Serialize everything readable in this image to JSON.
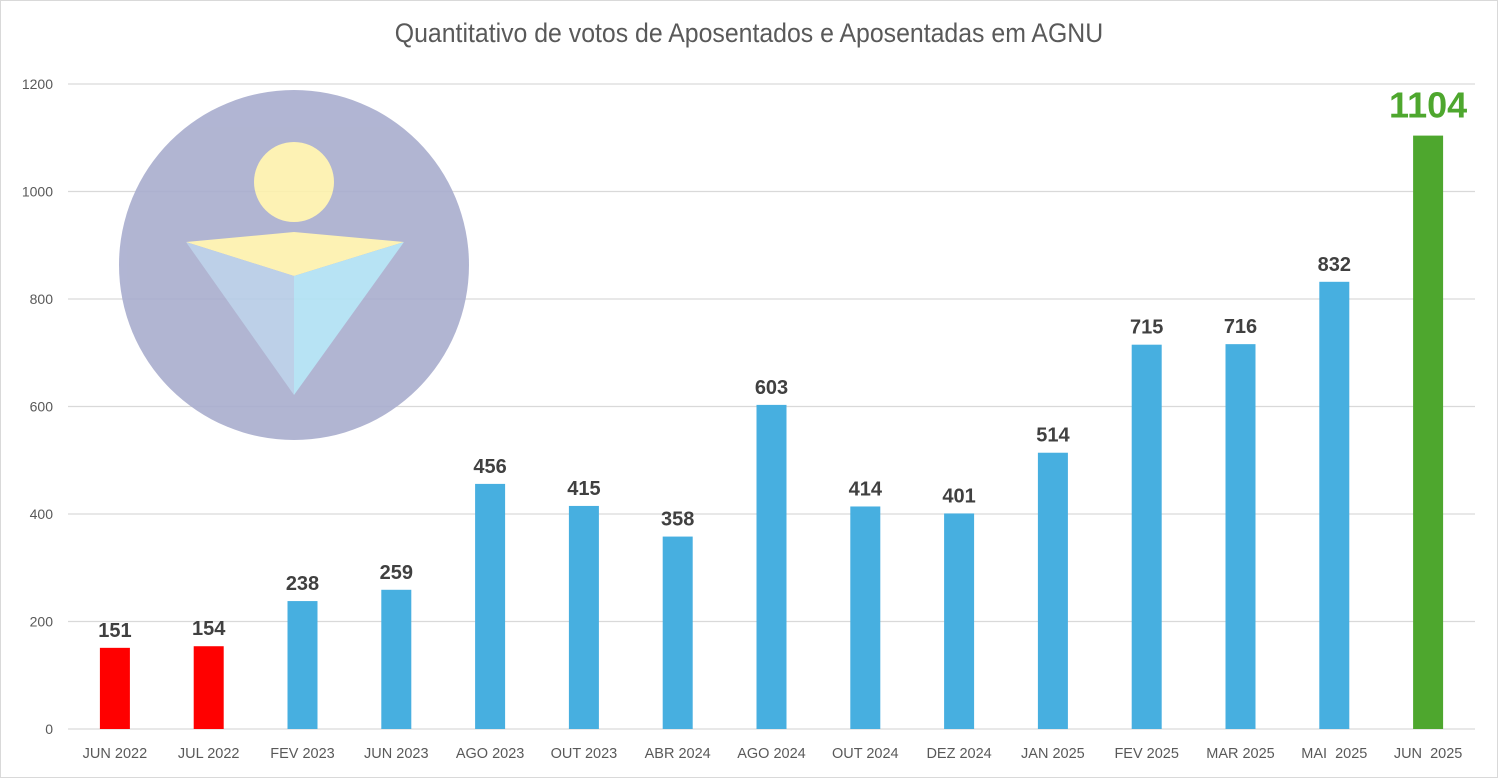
{
  "chart_data": {
    "type": "bar",
    "title": "Quantitativo de votos de Aposentados e Aposentadas em AGNU",
    "xlabel": "",
    "ylabel": "",
    "ylim": [
      0,
      1200
    ],
    "yticks": [
      0,
      200,
      400,
      600,
      800,
      1000,
      1200
    ],
    "grid": true,
    "legend": "none",
    "categories": [
      "JUN 2022",
      "JUL 2022",
      "FEV 2023",
      "JUN 2023",
      "AGO 2023",
      "OUT 2023",
      "ABR 2024",
      "AGO 2024",
      "OUT 2024",
      "DEZ 2024",
      "JAN 2025",
      "FEV 2025",
      "MAR 2025",
      "MAI  2025",
      "JUN  2025"
    ],
    "values": [
      151,
      154,
      238,
      259,
      456,
      415,
      358,
      603,
      414,
      401,
      514,
      715,
      716,
      832,
      1104
    ],
    "bar_colors": [
      "#ff0000",
      "#ff0000",
      "#47afe0",
      "#47afe0",
      "#47afe0",
      "#47afe0",
      "#47afe0",
      "#47afe0",
      "#47afe0",
      "#47afe0",
      "#47afe0",
      "#47afe0",
      "#47afe0",
      "#47afe0",
      "#4ea72e"
    ],
    "highlight_index": 14,
    "data_labels": true,
    "watermark": "logo-circle-person"
  },
  "colors": {
    "red": "#ff0000",
    "blue": "#47afe0",
    "green": "#4ea72e",
    "grid": "#d9d9d9",
    "text": "#595959"
  }
}
